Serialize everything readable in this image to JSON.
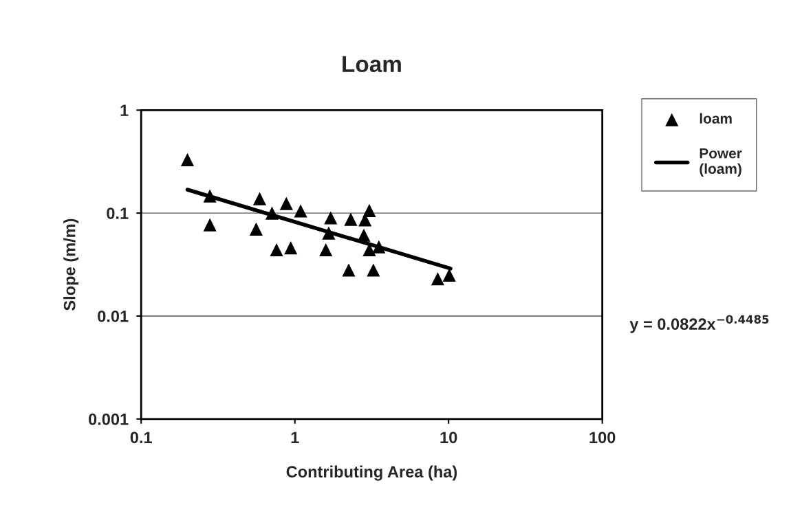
{
  "chart_data": {
    "type": "scatter",
    "title": "Loam",
    "xlabel": "Contributing Area (ha)",
    "ylabel": "Slope (m/m)",
    "log": "xy",
    "xlim": [
      0.1,
      100
    ],
    "ylim": [
      0.001,
      1
    ],
    "xticks": [
      0.1,
      1,
      10,
      100
    ],
    "yticks": [
      0.001,
      0.01,
      0.1,
      1
    ],
    "grid": "y",
    "legend": "top right",
    "annotations": [
      "y = 0.0822x$^{−0.4485}$"
    ],
    "series": [
      {
        "name": "loam",
        "marker": "triangle",
        "color": "#000000",
        "x": [
          0.2,
          0.28,
          0.28,
          0.59,
          0.56,
          0.71,
          0.76,
          0.88,
          0.94,
          1.09,
          1.71,
          1.66,
          1.59,
          2.31,
          2.24,
          2.86,
          3.05,
          2.81,
          3.05,
          3.52,
          3.24,
          8.5,
          10.1
        ],
        "values": [
          0.33,
          0.147,
          0.077,
          0.138,
          0.07,
          0.1,
          0.044,
          0.124,
          0.046,
          0.105,
          0.09,
          0.064,
          0.044,
          0.087,
          0.028,
          0.086,
          0.106,
          0.061,
          0.044,
          0.047,
          0.028,
          0.023,
          0.025
        ]
      },
      {
        "name": "Power\n(loam)",
        "type": "line",
        "color": "#000000",
        "line_style": "solid",
        "marker": "none",
        "x": [
          0.2,
          10.3
        ],
        "values": [
          0.169,
          0.0289
        ]
      }
    ]
  }
}
